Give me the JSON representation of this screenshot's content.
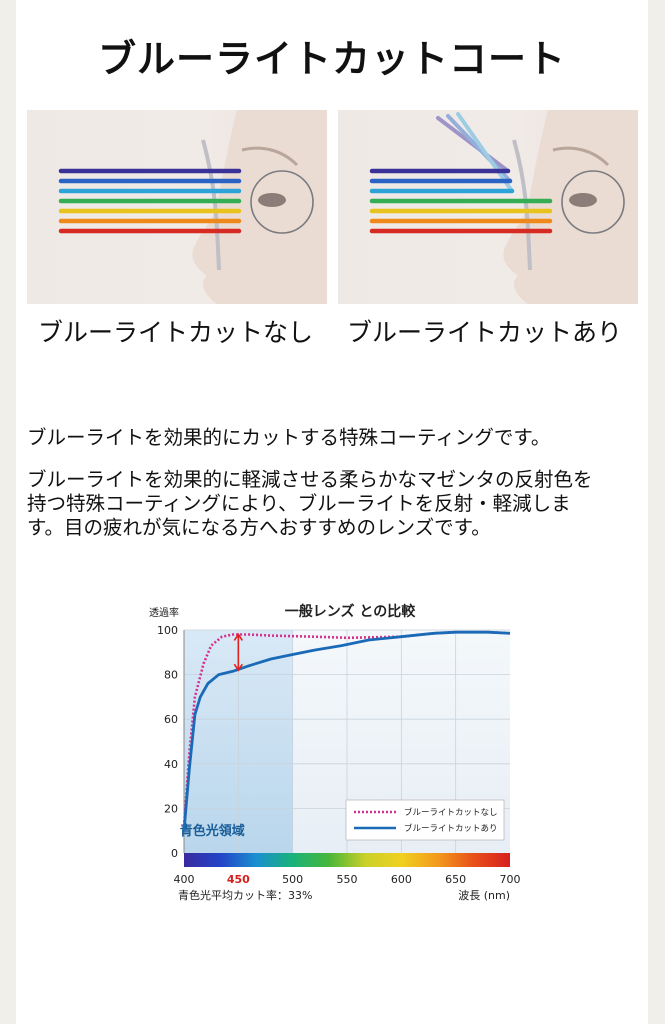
{
  "page": {
    "title": "ブルーライトカットコート",
    "caption_left": "ブルーライトカットなし",
    "caption_right": "ブルーライトカットあり",
    "paragraph1": "ブルーライトを効果的にカットする特殊コーティングです。",
    "paragraph2_lines": [
      "ブルーライトを効果的に軽減させる柔らかなマゼンタの反射色を",
      "持つ特殊コーティングにより、ブルーライトを反射・軽減しま",
      "す。目の疲れが気になる方へおすすめのレンズです。"
    ]
  },
  "chart_data": {
    "type": "line",
    "title": "一般レンズ との比較",
    "ylabel": "透過率",
    "xlabel": "波長 (nm)",
    "x_ticks": [
      "400",
      "450",
      "500",
      "550",
      "600",
      "650",
      "700"
    ],
    "y_ticks": [
      "0",
      "20",
      "40",
      "60",
      "80",
      "100"
    ],
    "xlim": [
      400,
      700
    ],
    "ylim": [
      0,
      100
    ],
    "region_label": "青色光領域",
    "region_range": [
      400,
      500
    ],
    "footnote": "青色光平均カット率：33%",
    "highlight_tick": "450",
    "series": [
      {
        "name": "ブルーライトカットなし",
        "color": "#d6308f",
        "dash": true,
        "points": [
          [
            400,
            12
          ],
          [
            405,
            45
          ],
          [
            410,
            70
          ],
          [
            418,
            85
          ],
          [
            425,
            93
          ],
          [
            435,
            97
          ],
          [
            445,
            98
          ],
          [
            460,
            98
          ],
          [
            480,
            97.5
          ],
          [
            520,
            97
          ],
          [
            550,
            96.5
          ],
          [
            600,
            97
          ],
          [
            630,
            98.5
          ],
          [
            650,
            99
          ],
          [
            680,
            99
          ],
          [
            700,
            98.5
          ]
        ]
      },
      {
        "name": "ブルーライトカットあり",
        "color": "#1a6ab8",
        "dash": false,
        "points": [
          [
            400,
            10
          ],
          [
            405,
            38
          ],
          [
            410,
            62
          ],
          [
            415,
            70
          ],
          [
            422,
            76
          ],
          [
            432,
            80
          ],
          [
            445,
            81.5
          ],
          [
            460,
            84
          ],
          [
            480,
            87
          ],
          [
            500,
            89
          ],
          [
            520,
            91
          ],
          [
            545,
            93
          ],
          [
            570,
            95.5
          ],
          [
            600,
            97
          ],
          [
            630,
            98.5
          ],
          [
            650,
            99
          ],
          [
            680,
            99
          ],
          [
            700,
            98.5
          ]
        ]
      }
    ],
    "arrow_at_x": 450,
    "arrow_from": 98,
    "arrow_to": 82,
    "arrow_color": "#e0201e",
    "spectrum_colors": [
      "#3a2aa0",
      "#2244c8",
      "#1a8fd0",
      "#19b27a",
      "#48b63a",
      "#c9d028",
      "#f0d020",
      "#f29a1c",
      "#e8501a",
      "#d6201e"
    ]
  }
}
